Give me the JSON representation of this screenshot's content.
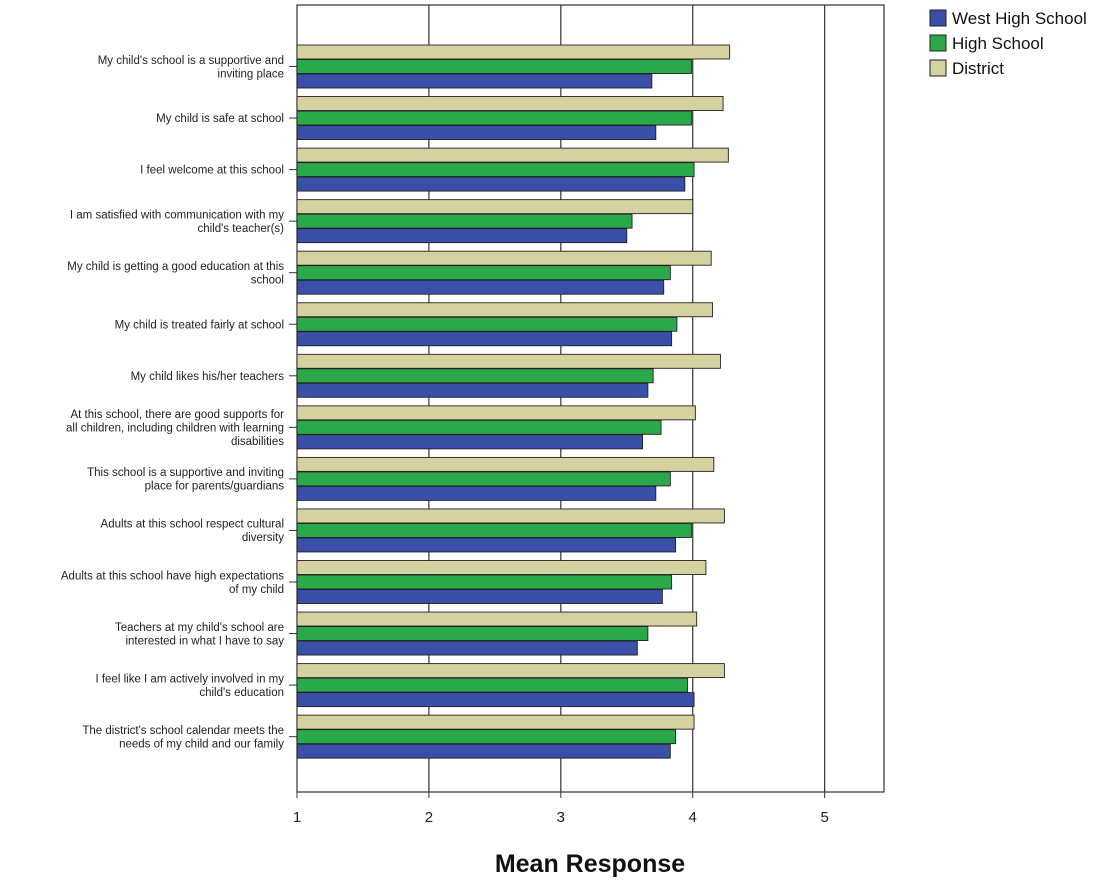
{
  "chart_data": {
    "type": "bar",
    "orientation": "horizontal",
    "xlabel": "Mean Response",
    "xlim": [
      1,
      5.45
    ],
    "xticks": [
      1,
      2,
      3,
      4,
      5
    ],
    "grid": true,
    "legend_position": "top-right",
    "categories": [
      [
        "My child's school is a supportive and",
        "inviting place"
      ],
      [
        "My child is safe at school"
      ],
      [
        "I feel welcome at this school"
      ],
      [
        "I am satisfied with communication with my",
        "child's teacher(s)"
      ],
      [
        "My child is getting a good education at this",
        "school"
      ],
      [
        "My child is treated fairly at school"
      ],
      [
        "My child likes his/her teachers"
      ],
      [
        "At this school, there are good supports for",
        "all children, including children with learning",
        "disabilities"
      ],
      [
        "This school is a supportive and inviting",
        "place for parents/guardians"
      ],
      [
        "Adults at this school respect cultural",
        "diversity"
      ],
      [
        "Adults at this school have high expectations",
        "of my child"
      ],
      [
        "Teachers at my child's school are",
        "interested in what I have to say"
      ],
      [
        "I feel like I am actively involved in my",
        "child's education"
      ],
      [
        "The district's school calendar meets the",
        "needs of my child and our family"
      ]
    ],
    "series": [
      {
        "name": "District",
        "color": "#d6d1a1",
        "values": [
          4.28,
          4.23,
          4.27,
          4.0,
          4.14,
          4.15,
          4.21,
          4.02,
          4.16,
          4.24,
          4.1,
          4.03,
          4.24,
          4.01
        ]
      },
      {
        "name": "High School",
        "color": "#2aa84a",
        "values": [
          3.99,
          3.99,
          4.01,
          3.54,
          3.83,
          3.88,
          3.7,
          3.76,
          3.83,
          3.99,
          3.84,
          3.66,
          3.96,
          3.87
        ]
      },
      {
        "name": "West High School",
        "color": "#3a4fa8",
        "values": [
          3.69,
          3.72,
          3.94,
          3.5,
          3.78,
          3.84,
          3.66,
          3.62,
          3.72,
          3.87,
          3.77,
          3.58,
          4.01,
          3.83
        ]
      }
    ],
    "legend": [
      "West High School",
      "High School",
      "District"
    ]
  }
}
